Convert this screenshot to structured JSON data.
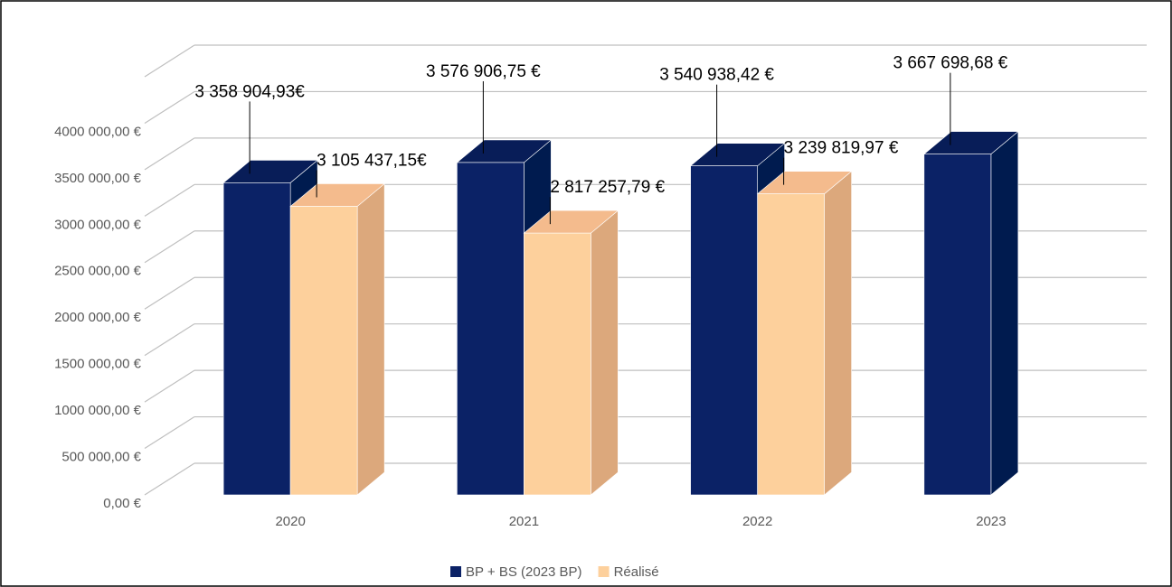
{
  "chart_data": {
    "type": "bar3d",
    "categories": [
      "2020",
      "2021",
      "2022",
      "2023"
    ],
    "series": [
      {
        "name": "BP + BS (2023 BP)",
        "color": "#0b2266",
        "top_color": "#081d58",
        "side_color": "#001b4f",
        "values": [
          3358904.93,
          3576906.75,
          3540938.42,
          3667698.68
        ],
        "value_labels": [
          "3 358 904,93€",
          "3 576 906,75 €",
          "3 540 938,42 €",
          "3 667 698,68 €"
        ]
      },
      {
        "name": "Réalisé",
        "color": "#fdd09c",
        "top_color": "#f4bb8d",
        "side_color": "#dca87c",
        "values": [
          3105437.15,
          2817257.79,
          3239819.97,
          null
        ],
        "value_labels": [
          "3 105 437,15€",
          "2 817 257,79 €",
          "3 239 819,97 €",
          null
        ]
      }
    ],
    "ylim": [
      0,
      4500000
    ],
    "yticks": [
      {
        "value": 0,
        "label": "0,00 €"
      },
      {
        "value": 500000,
        "label": "500 000,00 €"
      },
      {
        "value": 1000000,
        "label": "1000 000,00 €"
      },
      {
        "value": 1500000,
        "label": "1500 000,00 €"
      },
      {
        "value": 2000000,
        "label": "2000 000,00 €"
      },
      {
        "value": 2500000,
        "label": "2500 000,00 €"
      },
      {
        "value": 3000000,
        "label": "3000 000,00 €"
      },
      {
        "value": 3500000,
        "label": "3500 000,00 €"
      },
      {
        "value": 4000000,
        "label": "4000 000,00 €"
      }
    ],
    "grid": true,
    "legend": "bottom"
  }
}
